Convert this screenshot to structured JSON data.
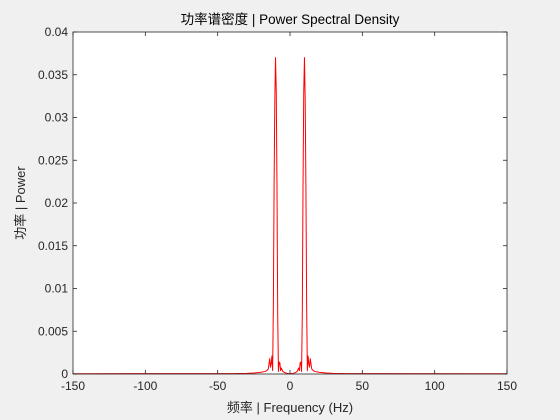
{
  "chart_data": {
    "type": "line",
    "title": "功率谱密度 | Power Spectral Density",
    "xlabel": "频率 | Frequency (Hz)",
    "ylabel": "功率 | Power",
    "xlim": [
      -150,
      150
    ],
    "ylim": [
      0,
      0.04
    ],
    "xticks": [
      -150,
      -100,
      -50,
      0,
      50,
      100,
      150
    ],
    "yticks": [
      0,
      0.005,
      0.01,
      0.015,
      0.02,
      0.025,
      0.03,
      0.035,
      0.04
    ],
    "xtick_labels": [
      "-150",
      "-100",
      "-50",
      "0",
      "50",
      "100",
      "150"
    ],
    "ytick_labels": [
      "0",
      "0.005",
      "0.01",
      "0.015",
      "0.02",
      "0.025",
      "0.03",
      "0.035",
      "0.04"
    ],
    "grid": false,
    "box": true,
    "line_color": "#ff0000",
    "series": [
      {
        "x": [
          -150,
          -40,
          -30,
          -25,
          -20,
          -17,
          -16,
          -15,
          -14.5,
          -14,
          -13.5,
          -13,
          -12.5,
          -12,
          -11.5,
          -11,
          -10.5,
          -10,
          -9.5,
          -9,
          -8.5,
          -8,
          -7.5,
          -7,
          -6.5,
          -6,
          -5.5,
          -5,
          -4,
          -3,
          -2,
          -1,
          0,
          1,
          2,
          3,
          4,
          5,
          5.5,
          6,
          6.5,
          7,
          7.5,
          8,
          8.5,
          9,
          9.5,
          10,
          10.5,
          11,
          11.5,
          12,
          12.5,
          13,
          13.5,
          14,
          14.5,
          15,
          16,
          17,
          20,
          25,
          30,
          40,
          150
        ],
        "y": [
          3e-05,
          5e-05,
          8e-05,
          0.00012,
          0.0002,
          0.0003,
          0.0004,
          0.0006,
          0.0012,
          0.0018,
          0.0008,
          0.0012,
          0.0021,
          0.0004,
          0.008,
          0.022,
          0.032,
          0.037,
          0.033,
          0.022,
          0.007,
          0.0003,
          0.0014,
          0.0013,
          0.0004,
          0.0007,
          0.0005,
          0.0003,
          0.0002,
          0.00012,
          8e-05,
          6e-05,
          5e-05,
          6e-05,
          8e-05,
          0.00012,
          0.0002,
          0.0003,
          0.0005,
          0.0007,
          0.0004,
          0.0013,
          0.0014,
          0.0003,
          0.007,
          0.022,
          0.033,
          0.037,
          0.032,
          0.022,
          0.008,
          0.0004,
          0.0021,
          0.0012,
          0.0008,
          0.0018,
          0.0012,
          0.0006,
          0.0004,
          0.0003,
          0.0002,
          0.00012,
          8e-05,
          5e-05,
          3e-05
        ]
      }
    ]
  }
}
